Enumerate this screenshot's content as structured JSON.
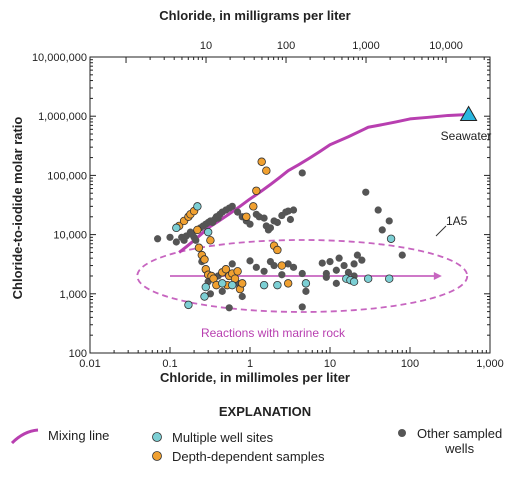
{
  "chart_data": {
    "type": "scatter",
    "title": "",
    "xlabel": "Chloride, in millimoles per liter",
    "x2label": "Chloride, in milligrams per liter",
    "ylabel": "Chloride-to-iodide molar ratio",
    "xscale": "log",
    "yscale": "log",
    "xlim": [
      0.01,
      1000
    ],
    "ylim": [
      100,
      10000000
    ],
    "x_ticks": [
      "0.01",
      "0.1",
      "1",
      "10",
      "100",
      "1,000"
    ],
    "x2_ticks": [
      "10",
      "100",
      "1,000",
      "10,000"
    ],
    "y_ticks": [
      "100",
      "1,000",
      "10,000",
      "100,000",
      "1,000,000",
      "10,000,000"
    ],
    "colors": {
      "mixing_line": "#b83fb0",
      "multiple_well": "#7ccfd4",
      "depth_dependent": "#f0a030",
      "other": "#555555",
      "seawater": "#29b6e0",
      "reaction_arrow": "#c765c0"
    },
    "series": [
      {
        "name": "Multiple well sites",
        "points": [
          [
            0.12,
            13000
          ],
          [
            0.17,
            650
          ],
          [
            0.22,
            30000
          ],
          [
            0.27,
            900
          ],
          [
            0.28,
            1300
          ],
          [
            0.3,
            11000
          ],
          [
            0.45,
            1500
          ],
          [
            0.6,
            1400
          ],
          [
            1.5,
            1400
          ],
          [
            2.2,
            1400
          ],
          [
            5,
            1500
          ],
          [
            16,
            1800
          ],
          [
            18,
            1700
          ],
          [
            20,
            1600
          ],
          [
            30,
            1800
          ],
          [
            55,
            1800
          ],
          [
            58,
            8500
          ]
        ]
      },
      {
        "name": "Depth-dependent samples",
        "points": [
          [
            0.13,
            14000
          ],
          [
            0.15,
            17000
          ],
          [
            0.17,
            20000
          ],
          [
            0.18,
            22000
          ],
          [
            0.2,
            25000
          ],
          [
            0.22,
            12000
          ],
          [
            0.23,
            6000
          ],
          [
            0.25,
            4500
          ],
          [
            0.27,
            3800
          ],
          [
            0.28,
            2600
          ],
          [
            0.3,
            2100
          ],
          [
            0.32,
            8000
          ],
          [
            0.33,
            2000
          ],
          [
            0.35,
            1800
          ],
          [
            0.38,
            1400
          ],
          [
            0.45,
            2300
          ],
          [
            0.5,
            2600
          ],
          [
            0.52,
            1400
          ],
          [
            0.55,
            2000
          ],
          [
            0.6,
            2200
          ],
          [
            0.65,
            1800
          ],
          [
            0.7,
            2400
          ],
          [
            0.75,
            1200
          ],
          [
            0.8,
            1500
          ],
          [
            0.9,
            20000
          ],
          [
            1.1,
            30000
          ],
          [
            1.2,
            55000
          ],
          [
            1.4,
            170000
          ],
          [
            1.6,
            120000
          ],
          [
            2.0,
            6500
          ],
          [
            2.2,
            5500
          ],
          [
            2.5,
            3000
          ],
          [
            3.0,
            1500
          ]
        ]
      },
      {
        "name": "Other sampled wells",
        "points": [
          [
            0.07,
            8500
          ],
          [
            0.1,
            9000
          ],
          [
            0.12,
            7500
          ],
          [
            0.14,
            9000
          ],
          [
            0.15,
            8000
          ],
          [
            0.16,
            9500
          ],
          [
            0.18,
            11000
          ],
          [
            0.19,
            10000
          ],
          [
            0.2,
            9000
          ],
          [
            0.21,
            8000
          ],
          [
            0.24,
            13000
          ],
          [
            0.26,
            14000
          ],
          [
            0.28,
            15000
          ],
          [
            0.3,
            16000
          ],
          [
            0.32,
            17000
          ],
          [
            0.34,
            16000
          ],
          [
            0.36,
            18000
          ],
          [
            0.38,
            20000
          ],
          [
            0.4,
            19000
          ],
          [
            0.42,
            22000
          ],
          [
            0.45,
            24000
          ],
          [
            0.5,
            26000
          ],
          [
            0.55,
            28000
          ],
          [
            0.6,
            30000
          ],
          [
            0.7,
            24000
          ],
          [
            0.8,
            20000
          ],
          [
            0.9,
            17000
          ],
          [
            1.0,
            15000
          ],
          [
            1.2,
            22000
          ],
          [
            1.3,
            20000
          ],
          [
            1.5,
            19000
          ],
          [
            1.6,
            14000
          ],
          [
            1.7,
            12000
          ],
          [
            1.8,
            13000
          ],
          [
            2.0,
            17000
          ],
          [
            2.2,
            16000
          ],
          [
            2.5,
            21000
          ],
          [
            2.8,
            24000
          ],
          [
            3.0,
            25000
          ],
          [
            3.2,
            18000
          ],
          [
            3.5,
            26000
          ],
          [
            4.5,
            110000
          ],
          [
            0.25,
            3500
          ],
          [
            0.28,
            2500
          ],
          [
            0.3,
            1600
          ],
          [
            0.32,
            1000
          ],
          [
            0.4,
            2000
          ],
          [
            0.45,
            1100
          ],
          [
            0.55,
            580
          ],
          [
            0.6,
            3200
          ],
          [
            0.7,
            1500
          ],
          [
            0.8,
            900
          ],
          [
            1.0,
            3600
          ],
          [
            1.2,
            2800
          ],
          [
            1.5,
            2400
          ],
          [
            1.8,
            3500
          ],
          [
            2.0,
            3000
          ],
          [
            2.5,
            2100
          ],
          [
            3.0,
            3200
          ],
          [
            3.5,
            2800
          ],
          [
            4.5,
            600
          ],
          [
            4.5,
            2200
          ],
          [
            5.0,
            1100
          ],
          [
            8.0,
            3300
          ],
          [
            9.0,
            2200
          ],
          [
            10,
            3500
          ],
          [
            12,
            2500
          ],
          [
            13,
            4000
          ],
          [
            15,
            3000
          ],
          [
            17,
            2300
          ],
          [
            20,
            3200
          ],
          [
            22,
            4500
          ],
          [
            25,
            3700
          ],
          [
            28,
            52000
          ],
          [
            40,
            26000
          ],
          [
            45,
            12000
          ],
          [
            55,
            17000
          ],
          [
            80,
            4500
          ],
          [
            9.0,
            1900
          ],
          [
            20,
            2000
          ],
          [
            12,
            1500
          ]
        ]
      },
      {
        "name": "Seawater",
        "points": [
          [
            540,
            1070000
          ]
        ]
      }
    ],
    "mixing_line": [
      [
        0.13,
        5000
      ],
      [
        0.3,
        13000
      ],
      [
        1,
        40000
      ],
      [
        3,
        120000
      ],
      [
        10,
        330000
      ],
      [
        30,
        650000
      ],
      [
        100,
        900000
      ],
      [
        300,
        1030000
      ],
      [
        540,
        1070000
      ]
    ],
    "annotations": {
      "seawater": "Seawater",
      "well": "1A5",
      "reactions": "Reactions with marine rock"
    }
  },
  "legend": {
    "title": "EXPLANATION",
    "mixing_line": "Mixing line",
    "multiple_well": "Multiple well sites",
    "depth_dependent": "Depth-dependent samples",
    "other_line1": "Other sampled",
    "other_line2": "wells"
  }
}
